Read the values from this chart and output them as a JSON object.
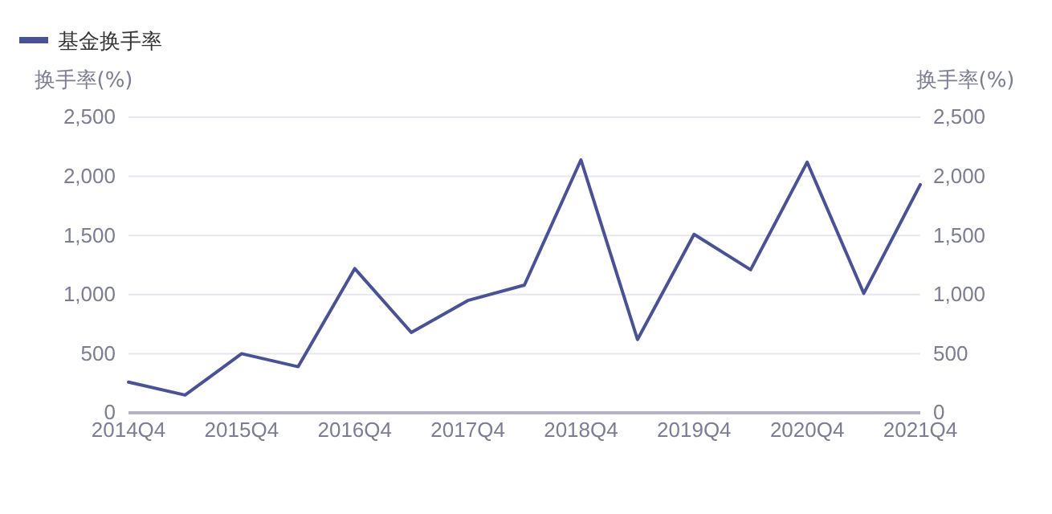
{
  "chart_data": {
    "type": "line",
    "categories": [
      "2014Q4",
      null,
      "2015Q4",
      null,
      "2016Q4",
      null,
      "2017Q4",
      null,
      "2018Q4",
      null,
      "2019Q4",
      null,
      "2020Q4",
      null,
      "2021Q4"
    ],
    "series": [
      {
        "name": "基金换手率",
        "color": "#4a5296",
        "values": [
          260,
          150,
          500,
          390,
          1220,
          680,
          950,
          1080,
          2140,
          620,
          1510,
          1210,
          2120,
          1010,
          1930
        ]
      }
    ],
    "ylabel": "换手率(%)",
    "y2label": "换手率(%)",
    "ylim": [
      0,
      2500
    ],
    "yticks": [
      0,
      500,
      {
        "value": 1000,
        "label": "1,000"
      },
      {
        "value": 1500,
        "label": "1,500"
      },
      {
        "value": 2000,
        "label": "2,000"
      },
      {
        "value": 2500,
        "label": "2,500"
      }
    ],
    "y2lim": [
      0,
      2500
    ],
    "y2ticks": [
      0,
      500,
      {
        "value": 1000,
        "label": "1,000"
      },
      {
        "value": 1500,
        "label": "1,500"
      },
      {
        "value": 2000,
        "label": "2,000"
      },
      {
        "value": 2500,
        "label": "2,500"
      }
    ],
    "grid": "y",
    "legend": "top left",
    "marker": "none",
    "line_style": "solid"
  }
}
